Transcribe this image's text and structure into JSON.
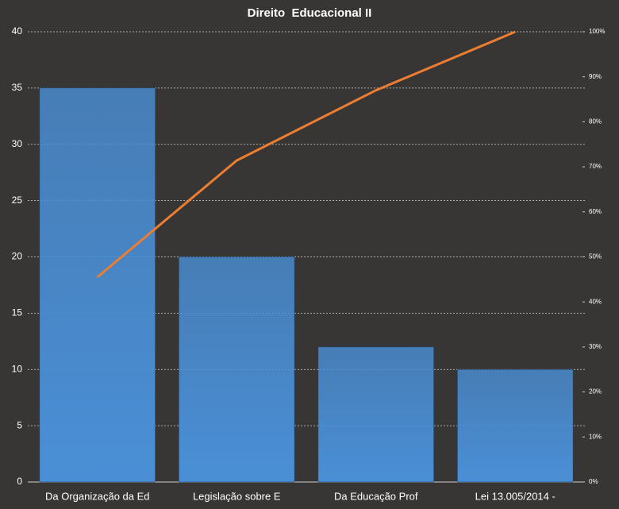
{
  "chart_data": {
    "type": "pareto",
    "title": "Direito  Educacional II",
    "categories": [
      "Da Organização da Ed",
      "Legislação sobre E",
      "Da Educação Prof",
      "Lei 13.005/2014 -"
    ],
    "series": [
      {
        "type": "bar",
        "color": "#4a8fd6",
        "values": [
          35,
          20,
          12,
          10
        ]
      },
      {
        "type": "line",
        "color": "#ed7d31",
        "axis": "y2",
        "values": [
          45.5,
          71.4,
          87.0,
          100
        ]
      }
    ],
    "ylim": [
      0,
      40
    ],
    "yticks": [
      0,
      5,
      10,
      15,
      20,
      25,
      30,
      35,
      40
    ],
    "y2lim": [
      0,
      100
    ],
    "y2ticks": [
      {
        "value": 0,
        "label": "0%"
      },
      {
        "value": 10,
        "label": "10%"
      },
      {
        "value": 20,
        "label": "20%"
      },
      {
        "value": 30,
        "label": "30%"
      },
      {
        "value": 40,
        "label": "40%"
      },
      {
        "value": 50,
        "label": "50%"
      },
      {
        "value": 60,
        "label": "60%"
      },
      {
        "value": 70,
        "label": "70%"
      },
      {
        "value": 80,
        "label": "80%"
      },
      {
        "value": 90,
        "label": "90%"
      },
      {
        "value": 100,
        "label": "100%"
      }
    ],
    "grid": true
  }
}
